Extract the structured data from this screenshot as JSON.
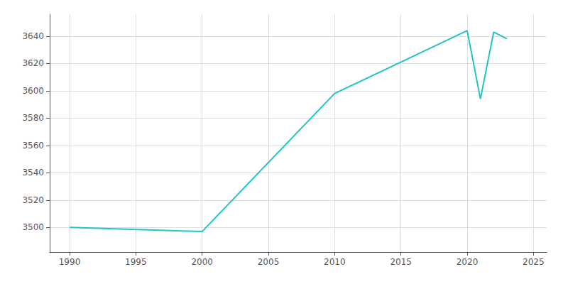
{
  "chart_data": {
    "type": "line",
    "x": [
      1990,
      2000,
      2010,
      2020,
      2021,
      2022,
      2023
    ],
    "values": [
      3500,
      3497,
      3598,
      3644,
      3594,
      3643,
      3638
    ],
    "color": "#22c4c4",
    "xlim": [
      1988.5,
      2026
    ],
    "ylim": [
      3482,
      3656
    ],
    "xticks": [
      1990,
      1995,
      2000,
      2005,
      2010,
      2015,
      2020,
      2025
    ],
    "yticks": [
      3500,
      3520,
      3540,
      3560,
      3580,
      3600,
      3620,
      3640
    ],
    "grid": true
  }
}
